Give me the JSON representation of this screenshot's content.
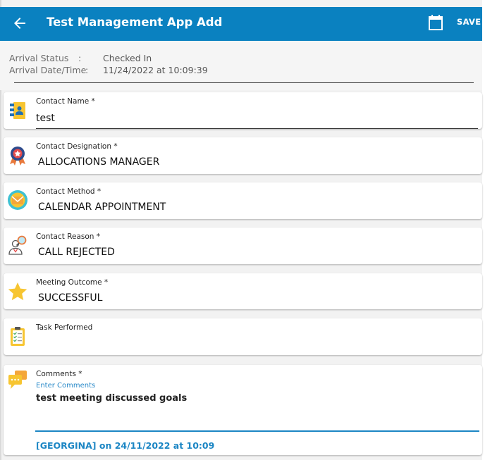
{
  "appbar": {
    "title": "Test Management App Add",
    "save_label": "SAVE",
    "back_icon": "arrow-left-icon",
    "calendar_icon": "calendar-icon"
  },
  "arrival": {
    "status_label": "Arrival Status",
    "status_value": "Checked In",
    "datetime_label": "Arrival Date/Time",
    "datetime_value": "11/24/2022 at 10:09:39",
    "separator": ":"
  },
  "fields": [
    {
      "label": "Contact Name *",
      "value": "test",
      "icon": "contact-book-icon"
    },
    {
      "label": "Contact Designation *",
      "value": "ALLOCATIONS MANAGER",
      "icon": "award-badge-icon"
    },
    {
      "label": "Contact Method *",
      "value": "CALENDAR APPOINTMENT",
      "icon": "envelope-icon"
    },
    {
      "label": "Contact Reason *",
      "value": "CALL REJECTED",
      "icon": "person-search-icon"
    },
    {
      "label": "Meeting Outcome *",
      "value": "SUCCESSFUL",
      "icon": "star-icon"
    },
    {
      "label": "Task Performed",
      "value": "",
      "icon": "clipboard-checklist-icon"
    }
  ],
  "comments": {
    "label": "Comments *",
    "placeholder": "Enter Comments",
    "value": "test meeting discussed goals",
    "signature": "[GEORGINA] on 24/11/2022 at 10:09",
    "icon": "chat-bubbles-icon"
  },
  "colors": {
    "appbar": "#0a81c0",
    "accent": "#1c86c4"
  }
}
